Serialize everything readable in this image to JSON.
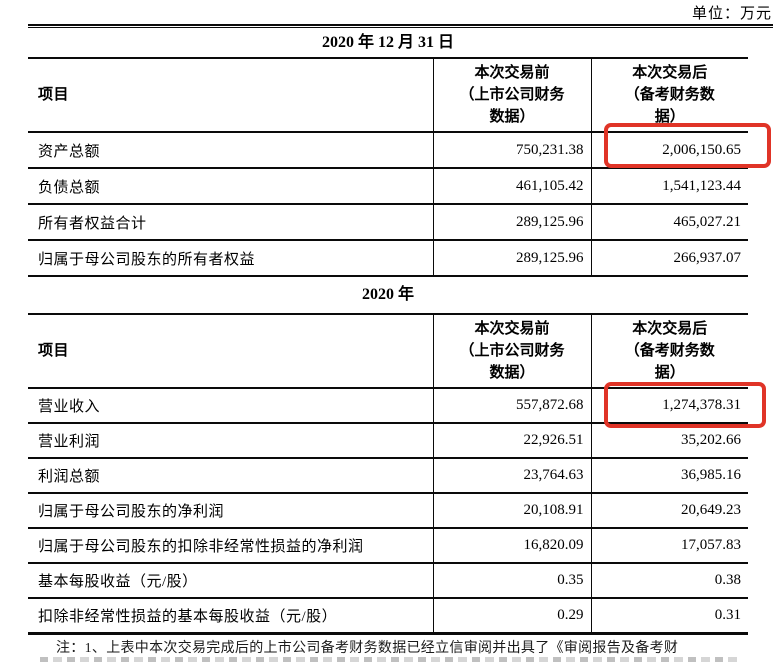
{
  "unit_label": "单位：万元",
  "accent_color": "#e03427",
  "table1": {
    "title": "2020 年 12 月 31 日",
    "headers": {
      "item": "项目",
      "before": "本次交易前\n（上市公司财务\n数据）",
      "after": "本次交易后\n（备考财务数\n据）"
    },
    "rows": [
      {
        "item": "资产总额",
        "before": "750,231.38",
        "after": "2,006,150.65",
        "highlight": true
      },
      {
        "item": "负债总额",
        "before": "461,105.42",
        "after": "1,541,123.44",
        "highlight": false
      },
      {
        "item": "所有者权益合计",
        "before": "289,125.96",
        "after": "465,027.21",
        "highlight": false
      },
      {
        "item": "归属于母公司股东的所有者权益",
        "before": "289,125.96",
        "after": "266,937.07",
        "highlight": false
      }
    ]
  },
  "table2": {
    "title": "2020 年",
    "headers": {
      "item": "项目",
      "before": "本次交易前\n（上市公司财务\n数据）",
      "after": "本次交易后\n（备考财务数\n据）"
    },
    "rows": [
      {
        "item": "营业收入",
        "before": "557,872.68",
        "after": "1,274,378.31",
        "highlight": true
      },
      {
        "item": "营业利润",
        "before": "22,926.51",
        "after": "35,202.66",
        "highlight": false
      },
      {
        "item": "利润总额",
        "before": "23,764.63",
        "after": "36,985.16",
        "highlight": false
      },
      {
        "item": "归属于母公司股东的净利润",
        "before": "20,108.91",
        "after": "20,649.23",
        "highlight": false
      },
      {
        "item": "归属于母公司股东的扣除非经常性损益的净利润",
        "before": "16,820.09",
        "after": "17,057.83",
        "highlight": false
      },
      {
        "item": "基本每股收益（元/股）",
        "before": "0.35",
        "after": "0.38",
        "highlight": false
      },
      {
        "item": "扣除非经常性损益的基本每股收益（元/股）",
        "before": "0.29",
        "after": "0.31",
        "highlight": false
      }
    ]
  },
  "note": "注：1、上表中本次交易完成后的上市公司备考财务数据已经立信审阅并出具了《审阅报告及备考财"
}
